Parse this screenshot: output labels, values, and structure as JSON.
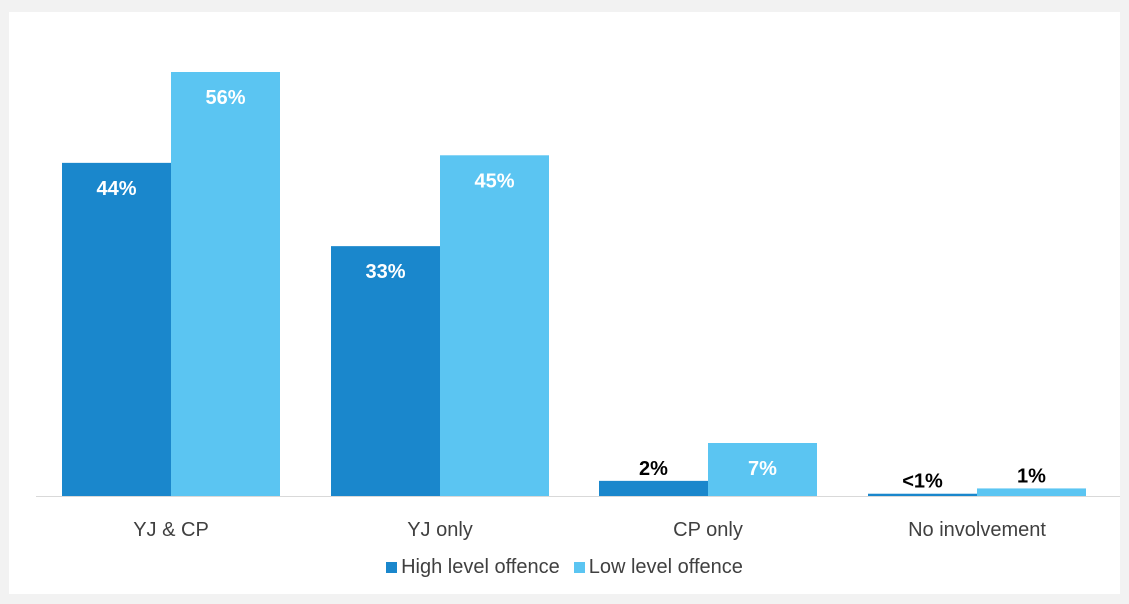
{
  "chart_data": {
    "type": "bar",
    "categories": [
      "YJ & CP",
      "YJ only",
      "CP only",
      "No involvement"
    ],
    "series": [
      {
        "name": "High level offence",
        "color": "#1a87cc",
        "values": [
          44,
          33,
          2,
          0.3
        ],
        "labels": [
          "44%",
          "33%",
          "2%",
          "<1%"
        ]
      },
      {
        "name": "Low level offence",
        "color": "#5bc5f2",
        "values": [
          56,
          45,
          7,
          1
        ],
        "labels": [
          "56%",
          "45%",
          "7%",
          "1%"
        ]
      }
    ],
    "ylim": [
      0,
      56
    ],
    "grid": false,
    "legend_position": "bottom"
  }
}
